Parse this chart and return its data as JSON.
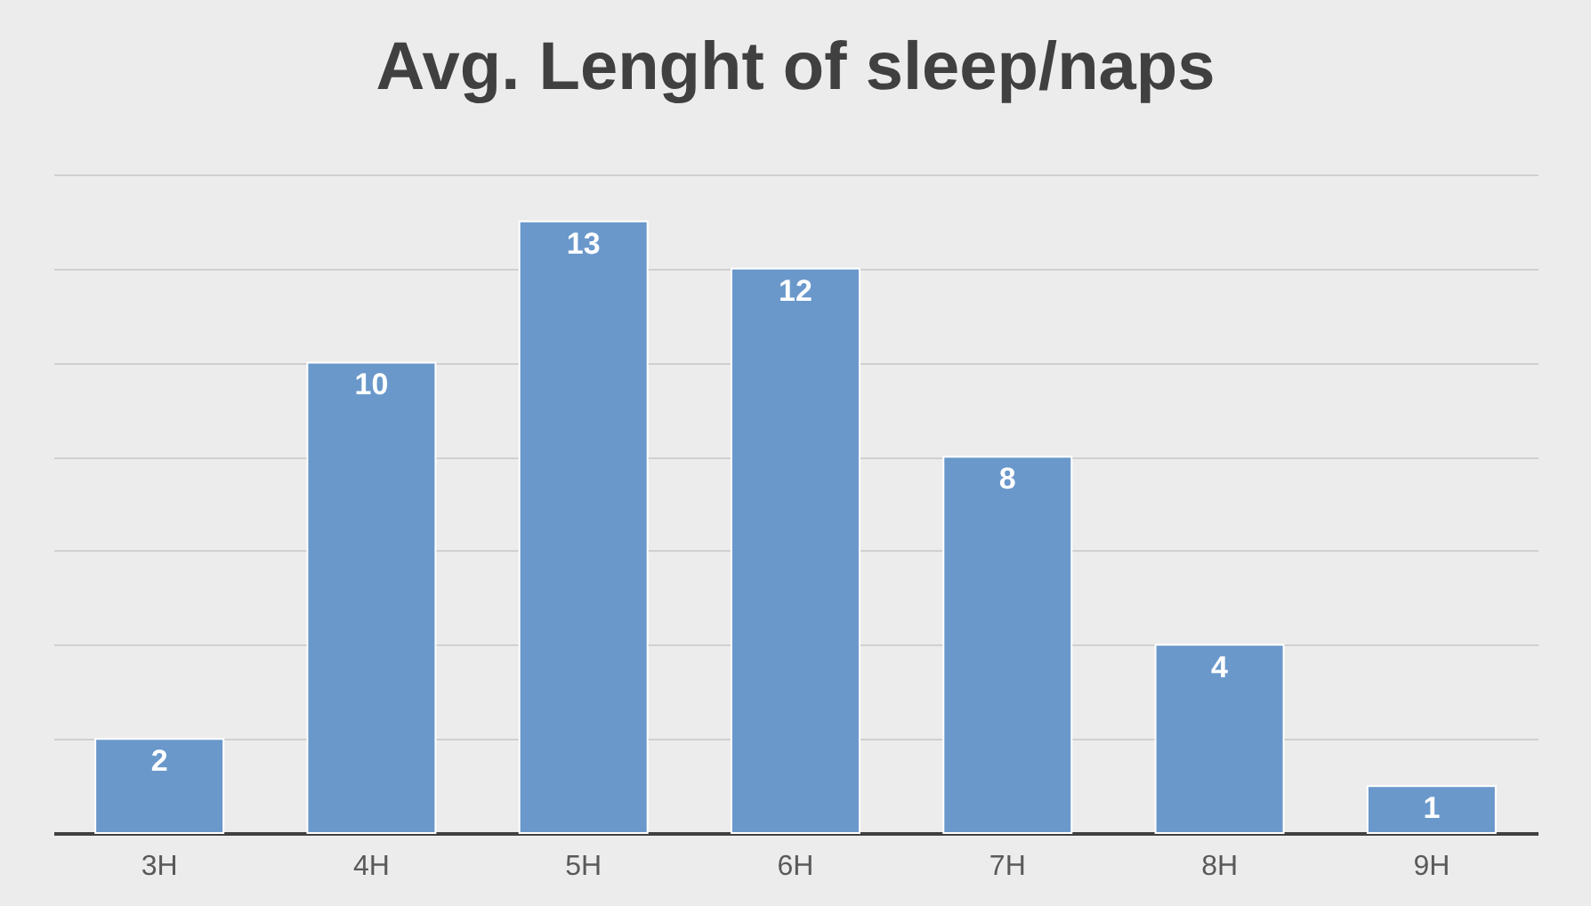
{
  "chart_data": {
    "type": "bar",
    "title": "Avg. Lenght of sleep/naps",
    "categories": [
      "3H",
      "4H",
      "5H",
      "6H",
      "7H",
      "8H",
      "9H"
    ],
    "values": [
      2,
      10,
      13,
      12,
      8,
      4,
      1
    ],
    "color": "#6a98cb",
    "ylim": [
      0,
      14
    ],
    "yticks": [
      {
        "value": 0,
        "label": null
      },
      {
        "value": 2,
        "label": null
      },
      {
        "value": 4,
        "label": null
      },
      {
        "value": 6,
        "label": null
      },
      {
        "value": 8,
        "label": null
      },
      {
        "value": 10,
        "label": null
      },
      {
        "value": 12,
        "label": null
      },
      {
        "value": 14,
        "label": null
      }
    ],
    "grid": "y",
    "tick_labels": "x",
    "data_labels": true
  }
}
